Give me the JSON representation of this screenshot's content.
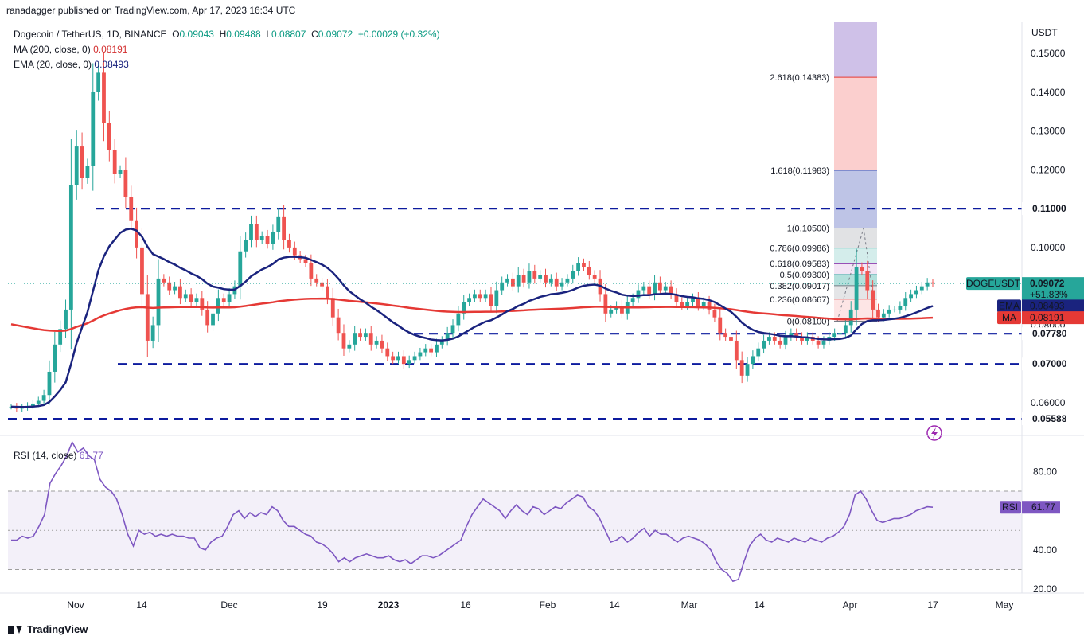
{
  "header": {
    "publisher": "ranadagger published on TradingView.com, Apr 17, 2023 16:34 UTC"
  },
  "legend": {
    "symbol": "Dogecoin / TetherUS, 1D, BINANCE",
    "o_label": "O",
    "o": "0.09043",
    "h_label": "H",
    "h": "0.09488",
    "l_label": "L",
    "l": "0.08807",
    "c_label": "C",
    "c": "0.09072",
    "change": "+0.00029 (+0.32%)",
    "ma_label": "MA (200, close, 0)",
    "ma_value": "0.08191",
    "ema_label": "EMA (20, close, 0)",
    "ema_value": "0.08493",
    "rsi_label": "RSI (14, close)",
    "rsi_value": "61.77"
  },
  "footer": {
    "brand": "TradingView"
  },
  "colors": {
    "up": "#26a69a",
    "down": "#ef5350",
    "ma": "#e53935",
    "ema": "#1a237e",
    "rsi": "#7e57c2",
    "level": "#0d1b9e",
    "fib_green": "#089981",
    "fib_blue": "#5c6bc0",
    "fib_red": "#e53935"
  },
  "chart_data": [
    {
      "type": "candlestick",
      "title": "Dogecoin / TetherUS, 1D, BINANCE",
      "y_axis_unit": "USDT",
      "ylim": [
        0.052,
        0.158
      ],
      "x_ticks": [
        "Nov",
        "14",
        "Dec",
        "19",
        "2023",
        "16",
        "Feb",
        "14",
        "Mar",
        "14",
        "Apr",
        "17",
        "May"
      ],
      "y_ticks": [
        "0.15000",
        "0.14000",
        "0.13000",
        "0.12000",
        "0.10000",
        "0.09000",
        "0.08000",
        "0.06000"
      ],
      "price_tag": {
        "label": "DOGEUSDT",
        "value": "0.09072",
        "change": "+51.83%",
        "countdown": "07:25:39"
      },
      "ma_tag": {
        "label": "MA",
        "value": "0.08191"
      },
      "ema_tag": {
        "label": "EMA",
        "value": "0.08493"
      },
      "horizontal_levels": [
        {
          "value": 0.11,
          "label": "0.11000"
        },
        {
          "value": 0.0778,
          "label": "0.07780"
        },
        {
          "value": 0.07,
          "label": "0.07000"
        },
        {
          "value": 0.05588,
          "label": "0.05588"
        }
      ],
      "fibonacci": {
        "levels": [
          {
            "ratio": "2.618",
            "price": "0.14383",
            "value": 0.14383
          },
          {
            "ratio": "1.618",
            "price": "0.11983",
            "value": 0.11983
          },
          {
            "ratio": "1",
            "price": "0.10500",
            "value": 0.105
          },
          {
            "ratio": "0.786",
            "price": "0.09986",
            "value": 0.09986
          },
          {
            "ratio": "0.618",
            "price": "0.09583",
            "value": 0.09583
          },
          {
            "ratio": "0.5",
            "price": "0.09300",
            "value": 0.093
          },
          {
            "ratio": "0.382",
            "price": "0.09017",
            "value": 0.09017
          },
          {
            "ratio": "0.236",
            "price": "0.08667",
            "value": 0.08667
          },
          {
            "ratio": "0",
            "price": "0.08100",
            "value": 0.081
          }
        ]
      },
      "series": [
        {
          "name": "MA (200, close, 0)",
          "last": 0.08191
        },
        {
          "name": "EMA (20, close, 0)",
          "last": 0.08493
        }
      ],
      "candles_close": [
        0.059,
        0.0585,
        0.0588,
        0.0592,
        0.0598,
        0.0605,
        0.062,
        0.068,
        0.075,
        0.079,
        0.084,
        0.116,
        0.126,
        0.118,
        0.121,
        0.14,
        0.145,
        0.132,
        0.125,
        0.119,
        0.12,
        0.113,
        0.107,
        0.1,
        0.088,
        0.076,
        0.08,
        0.092,
        0.091,
        0.089,
        0.09,
        0.087,
        0.088,
        0.086,
        0.087,
        0.084,
        0.08,
        0.083,
        0.087,
        0.086,
        0.088,
        0.09,
        0.099,
        0.102,
        0.106,
        0.102,
        0.103,
        0.101,
        0.104,
        0.108,
        0.102,
        0.1,
        0.098,
        0.097,
        0.096,
        0.092,
        0.091,
        0.09,
        0.087,
        0.082,
        0.078,
        0.074,
        0.075,
        0.078,
        0.077,
        0.078,
        0.075,
        0.076,
        0.074,
        0.072,
        0.071,
        0.072,
        0.07,
        0.071,
        0.072,
        0.073,
        0.074,
        0.073,
        0.075,
        0.076,
        0.078,
        0.08,
        0.083,
        0.086,
        0.087,
        0.088,
        0.087,
        0.088,
        0.085,
        0.089,
        0.091,
        0.092,
        0.09,
        0.093,
        0.091,
        0.094,
        0.092,
        0.093,
        0.091,
        0.092,
        0.09,
        0.091,
        0.092,
        0.094,
        0.096,
        0.095,
        0.093,
        0.092,
        0.088,
        0.083,
        0.084,
        0.085,
        0.083,
        0.086,
        0.087,
        0.089,
        0.09,
        0.088,
        0.091,
        0.089,
        0.09,
        0.088,
        0.086,
        0.085,
        0.086,
        0.087,
        0.085,
        0.086,
        0.084,
        0.082,
        0.078,
        0.077,
        0.076,
        0.071,
        0.067,
        0.07,
        0.072,
        0.074,
        0.076,
        0.077,
        0.076,
        0.075,
        0.077,
        0.078,
        0.077,
        0.076,
        0.077,
        0.076,
        0.075,
        0.076,
        0.077,
        0.078,
        0.078,
        0.08,
        0.084,
        0.095,
        0.094,
        0.089,
        0.084,
        0.082,
        0.083,
        0.084,
        0.084,
        0.085,
        0.087,
        0.088,
        0.089,
        0.09,
        0.091,
        0.0907
      ],
      "candles_open_shift": [
        0,
        0.0005,
        -0.0003,
        -0.0004,
        -0.0006,
        -0.0007,
        -0.0015,
        -0.006,
        -0.007,
        -0.004,
        -0.005,
        -0.032,
        -0.01,
        0.008,
        -0.003,
        -0.019,
        -0.005,
        0.013,
        0.007,
        0.006,
        -0.001,
        0.007,
        0.006,
        0.007,
        0.012,
        0.012,
        -0.004,
        -0.012,
        0.001,
        0.002,
        -0.001,
        0.003,
        -0.001,
        0.002,
        -0.001,
        0.003,
        0.004,
        -0.003,
        -0.004,
        0.001,
        -0.002,
        -0.002,
        -0.009,
        -0.003,
        -0.004,
        0.004,
        -0.001,
        0.002,
        -0.003,
        -0.004,
        0.006,
        0.002,
        0.002,
        0.001,
        0.001,
        0.004,
        0.001,
        0.001,
        0.003,
        0.005,
        0.004,
        0.004,
        -0.001,
        -0.003,
        0.001,
        -0.001,
        0.003,
        -0.001,
        0.002,
        0.002,
        0.001,
        -0.001,
        0.002,
        -0.001,
        -0.001,
        -0.001,
        -0.001,
        0.001,
        -0.002,
        -0.001,
        -0.002,
        -0.002,
        -0.003,
        -0.003,
        -0.001,
        -0.001,
        0.001,
        -0.001,
        0.003,
        -0.004,
        -0.002,
        -0.001,
        0.002,
        -0.003,
        0.002,
        -0.003,
        0.002,
        -0.001,
        0.002,
        -0.001,
        0.002,
        -0.001,
        -0.001,
        -0.002,
        -0.002,
        0.001,
        0.002,
        0.001,
        0.004,
        0.005,
        -0.001,
        -0.001,
        0.002,
        -0.003,
        -0.001,
        -0.002,
        -0.001,
        0.002,
        -0.003,
        0.002,
        -0.001,
        0.002,
        0.002,
        0.001,
        -0.001,
        -0.001,
        0.002,
        -0.001,
        0.002,
        0.002,
        0.004,
        0.001,
        0.001,
        0.005,
        0.004,
        -0.003,
        -0.002,
        -0.002,
        -0.002,
        -0.001,
        0.001,
        0.001,
        -0.002,
        -0.001,
        0.001,
        0.001,
        -0.001,
        0.001,
        0.001,
        -0.001,
        -0.001,
        -0.001,
        0,
        -0.002,
        -0.004,
        -0.011,
        0.001,
        0.005,
        0.005,
        0.002,
        -0.001,
        -0.001,
        0,
        -0.001,
        -0.002,
        -0.001,
        -0.001,
        -0.001,
        -0.001,
        0.0003
      ]
    },
    {
      "type": "line",
      "title": "RSI (14, close)",
      "ylim": [
        18,
        98
      ],
      "y_ticks": [
        "80.00",
        "40.00",
        "20.00"
      ],
      "bands": [
        70,
        50,
        30
      ],
      "series": [
        {
          "name": "RSI (14, close)",
          "last": 61.77
        }
      ],
      "values": [
        45,
        45,
        47,
        46,
        47,
        52,
        58,
        74,
        79,
        83,
        88,
        95,
        90,
        92,
        88,
        86,
        76,
        72,
        70,
        66,
        58,
        48,
        42,
        50,
        48,
        49,
        47,
        48,
        47,
        48,
        47,
        47,
        46,
        46,
        41,
        40,
        44,
        46,
        47,
        52,
        58,
        60,
        56,
        59,
        57,
        59,
        58,
        62,
        60,
        55,
        52,
        52,
        50,
        48,
        47,
        44,
        43,
        41,
        38,
        34,
        36,
        34,
        36,
        37,
        38,
        37,
        36,
        36,
        37,
        35,
        34,
        35,
        33,
        35,
        37,
        37,
        36,
        37,
        39,
        41,
        43,
        45,
        52,
        58,
        62,
        66,
        64,
        62,
        60,
        56,
        60,
        63,
        60,
        58,
        62,
        61,
        58,
        60,
        62,
        61,
        64,
        66,
        68,
        67,
        62,
        60,
        56,
        50,
        44,
        45,
        47,
        44,
        46,
        49,
        51,
        47,
        50,
        48,
        48,
        46,
        44,
        46,
        47,
        46,
        45,
        43,
        40,
        34,
        30,
        28,
        24,
        25,
        34,
        42,
        46,
        48,
        45,
        44,
        46,
        45,
        44,
        46,
        45,
        44,
        46,
        45,
        44,
        46,
        47,
        49,
        52,
        58,
        68,
        70,
        66,
        60,
        55,
        54,
        55,
        56,
        56,
        57,
        58,
        60,
        61,
        62,
        61.77
      ]
    }
  ]
}
